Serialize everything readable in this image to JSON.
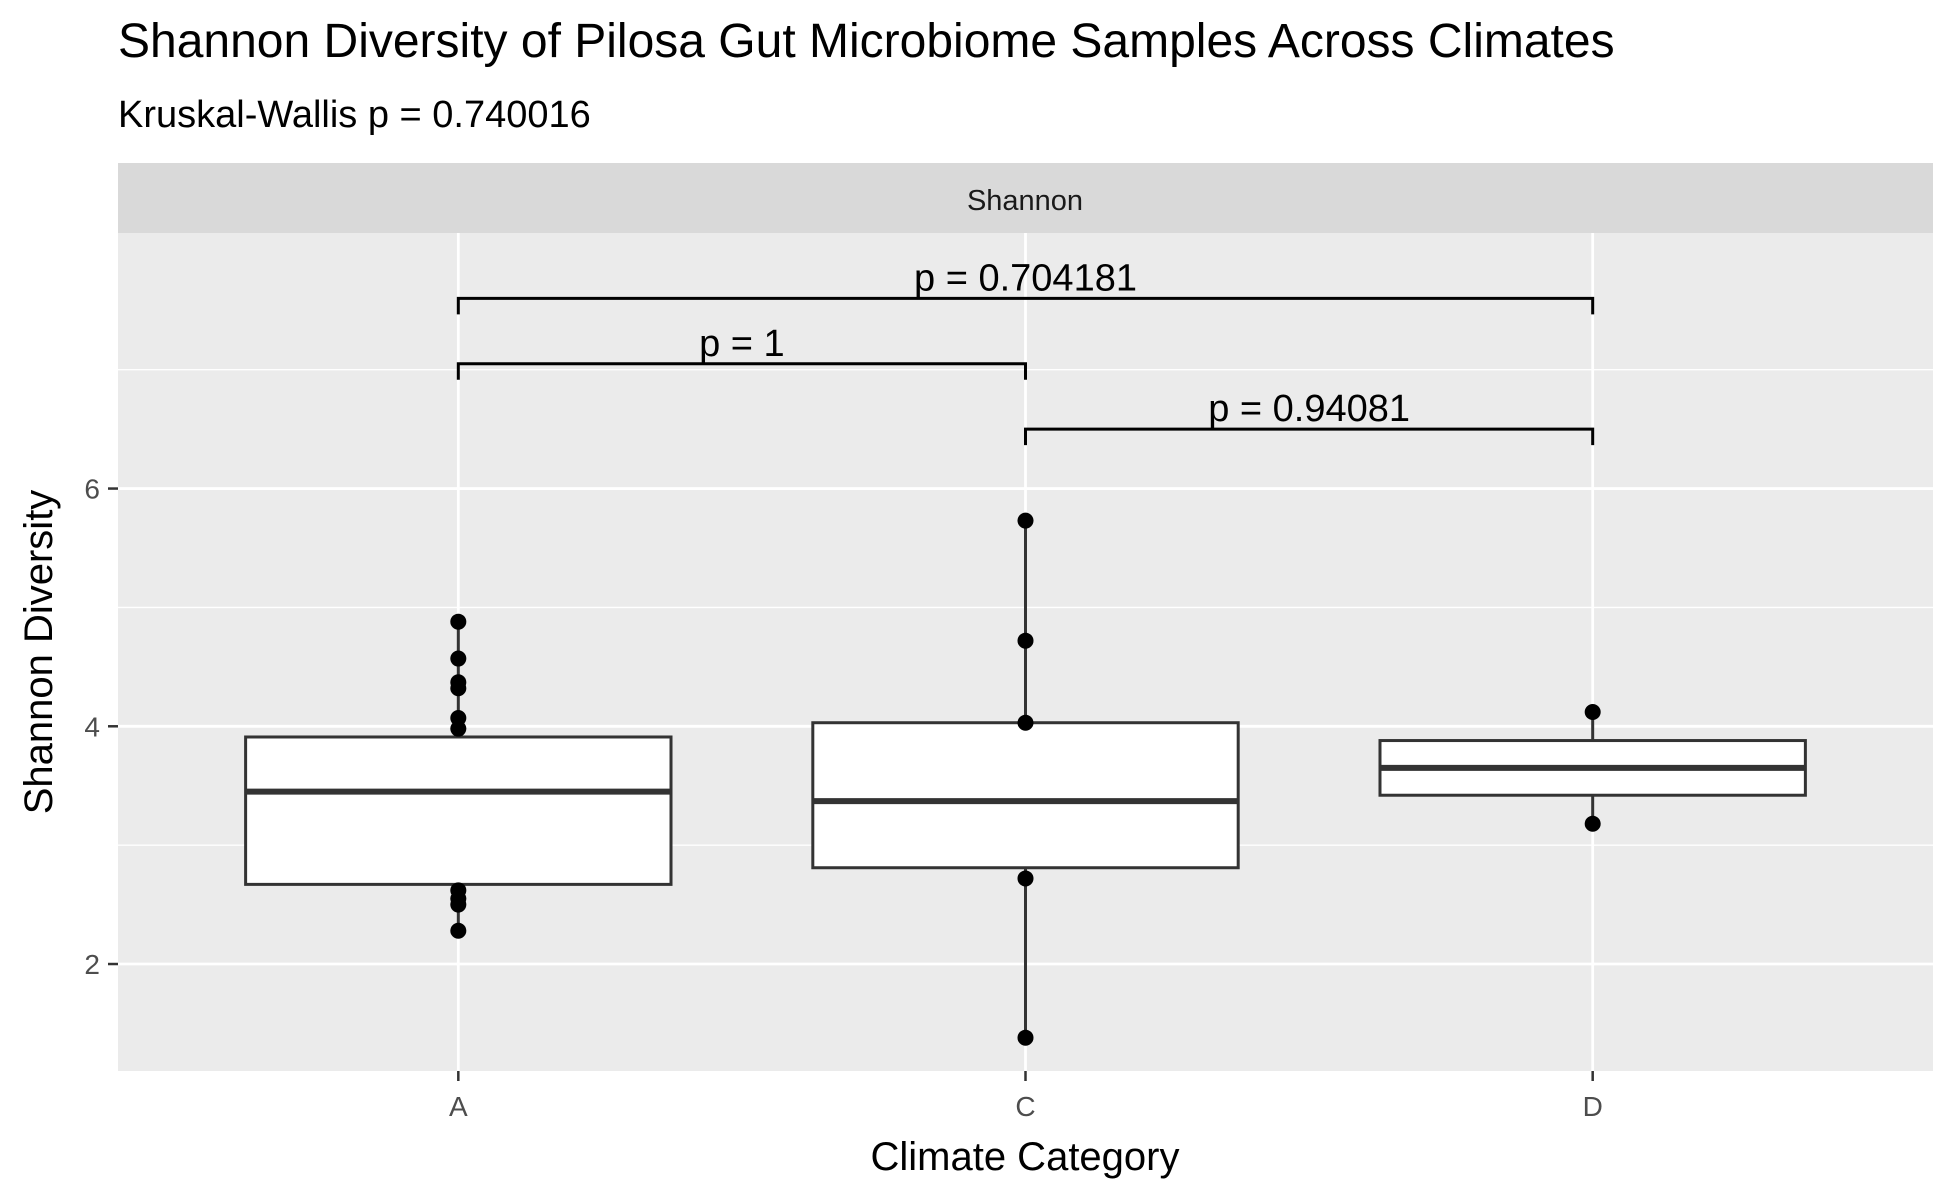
{
  "chart_data": {
    "type": "box",
    "title": "Shannon Diversity of Pilosa Gut Microbiome Samples Across Climates",
    "subtitle": "Kruskal-Wallis p = 0.740016",
    "facet_label": "Shannon",
    "xlabel": "Climate Category",
    "ylabel": "Shannon Diversity",
    "ylim": [
      1.1,
      8.15
    ],
    "yticks": [
      2,
      4,
      6
    ],
    "grid": true,
    "categories": [
      "A",
      "C",
      "D"
    ],
    "boxes": [
      {
        "category": "A",
        "q1": 2.67,
        "median": 3.45,
        "q3": 3.91,
        "whisker_low": 2.28,
        "whisker_high": 4.88,
        "points": [
          4.88,
          4.57,
          4.37,
          4.32,
          4.07,
          3.98,
          2.62,
          2.55,
          2.5,
          2.28
        ]
      },
      {
        "category": "C",
        "q1": 2.81,
        "median": 3.37,
        "q3": 4.03,
        "whisker_low": 1.38,
        "whisker_high": 5.73,
        "points": [
          5.73,
          4.72,
          4.03,
          2.72,
          1.38
        ]
      },
      {
        "category": "D",
        "q1": 3.42,
        "median": 3.65,
        "q3": 3.88,
        "whisker_low": 3.18,
        "whisker_high": 4.12,
        "points": [
          4.12,
          3.18
        ]
      }
    ],
    "comparisons": [
      {
        "from": "A",
        "to": "D",
        "y": 7.6,
        "label": "p = 0.704181"
      },
      {
        "from": "A",
        "to": "C",
        "y": 7.05,
        "label": "p = 1"
      },
      {
        "from": "C",
        "to": "D",
        "y": 6.5,
        "label": "p = 0.94081"
      }
    ]
  }
}
